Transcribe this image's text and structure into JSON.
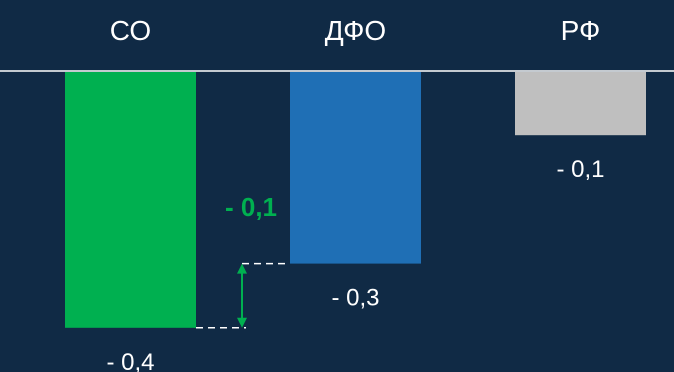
{
  "chart_data": {
    "type": "bar",
    "categories": [
      "СО",
      "ДФО",
      "РФ"
    ],
    "values": [
      -0.4,
      -0.3,
      -0.1
    ],
    "value_labels": [
      "- 0,4",
      "- 0,3",
      "- 0,1"
    ],
    "colors": [
      "#00b050",
      "#1f6fb5",
      "#bfbfbf"
    ],
    "category_position": "top",
    "difference_annotation": {
      "between": [
        "СО",
        "ДФО"
      ],
      "value": -0.1,
      "label": "- 0,1",
      "color": "#00b050"
    }
  },
  "theme": {
    "background": "#102a45",
    "baseline_color": "#ffffff",
    "text_color": "#ffffff"
  }
}
